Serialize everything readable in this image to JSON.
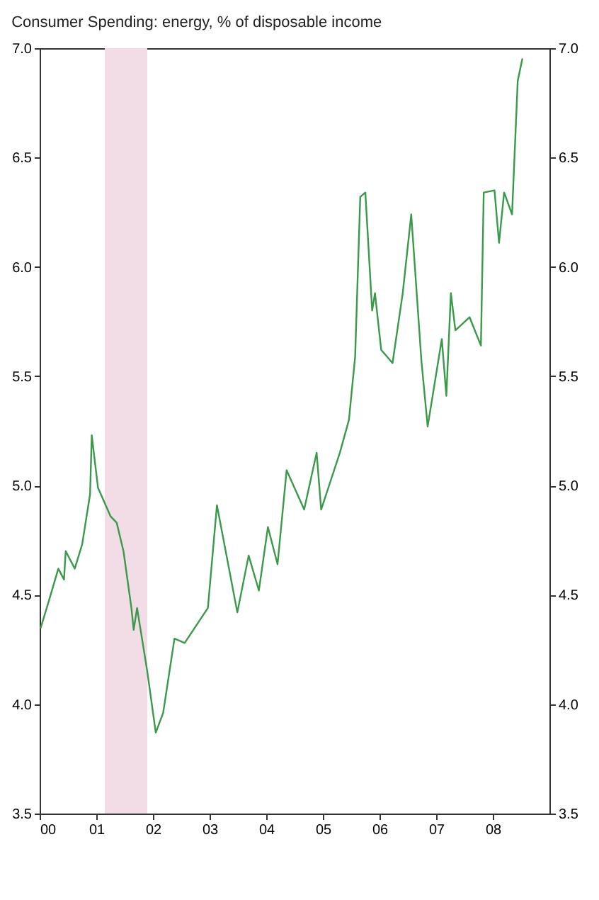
{
  "chart_data": {
    "type": "line",
    "title": "Consumer Spending: energy, % of disposable income",
    "x": [
      2000.02,
      2000.16,
      2000.33,
      2000.43,
      2000.46,
      2000.62,
      2000.75,
      2000.89,
      2000.92,
      2000.97,
      2001.03,
      2001.25,
      2001.36,
      2001.48,
      2001.62,
      2001.66,
      2001.72,
      2001.9,
      2002.05,
      2002.18,
      2002.38,
      2002.56,
      2002.97,
      2003.13,
      2003.49,
      2003.69,
      2003.87,
      2004.03,
      2004.2,
      2004.36,
      2004.67,
      2004.89,
      2004.97,
      2005.3,
      2005.46,
      2005.57,
      2005.66,
      2005.75,
      2005.87,
      2005.92,
      2006.03,
      2006.23,
      2006.41,
      2006.56,
      2006.74,
      2006.85,
      2007.1,
      2007.18,
      2007.26,
      2007.34,
      2007.59,
      2007.79,
      2007.84,
      2008.03,
      2008.11,
      2008.2,
      2008.34,
      2008.44,
      2008.52
    ],
    "series": [
      {
        "color": "#3a9a4a",
        "values": [
          4.35,
          4.47,
          4.62,
          4.57,
          4.7,
          4.62,
          4.73,
          4.96,
          5.23,
          5.12,
          4.99,
          4.86,
          4.83,
          4.7,
          4.44,
          4.34,
          4.44,
          4.15,
          3.87,
          3.96,
          4.3,
          4.28,
          4.44,
          4.91,
          4.42,
          4.68,
          4.52,
          4.81,
          4.64,
          5.07,
          4.89,
          5.15,
          4.89,
          5.15,
          5.3,
          5.59,
          6.32,
          6.34,
          5.8,
          5.88,
          5.62,
          5.56,
          5.88,
          6.24,
          5.57,
          5.27,
          5.67,
          5.41,
          5.88,
          5.71,
          5.77,
          5.64,
          6.34,
          6.35,
          6.11,
          6.34,
          6.24,
          6.85,
          6.95
        ]
      }
    ],
    "xlim": [
      2000,
      2009
    ],
    "xticks": [
      {
        "value": 2000,
        "label": "00"
      },
      {
        "value": 2001,
        "label": "01"
      },
      {
        "value": 2002,
        "label": "02"
      },
      {
        "value": 2003,
        "label": "03"
      },
      {
        "value": 2004,
        "label": "04"
      },
      {
        "value": 2005,
        "label": "05"
      },
      {
        "value": 2006,
        "label": "06"
      },
      {
        "value": 2007,
        "label": "07"
      },
      {
        "value": 2008,
        "label": "08"
      }
    ],
    "ylim": [
      3.5,
      7.0
    ],
    "yticks": [
      3.5,
      {
        "value": 4,
        "label": "4.0"
      },
      4.5,
      {
        "value": 5,
        "label": "5.0"
      },
      5.5,
      {
        "value": 6,
        "label": "6.0"
      },
      6.5,
      {
        "value": 7,
        "label": "7.0"
      }
    ],
    "y2lim": [
      3.5,
      7.0
    ],
    "y2ticks": [
      3.5,
      {
        "value": 4,
        "label": "4.0"
      },
      4.5,
      {
        "value": 5,
        "label": "5.0"
      },
      5.5,
      {
        "value": 6,
        "label": "6.0"
      },
      6.5,
      {
        "value": 7,
        "label": "7.0"
      }
    ],
    "bands": [
      {
        "axis": "x",
        "from": 2001.15,
        "to": 2001.9,
        "color": "#f2dde6"
      }
    ],
    "grid": false
  }
}
